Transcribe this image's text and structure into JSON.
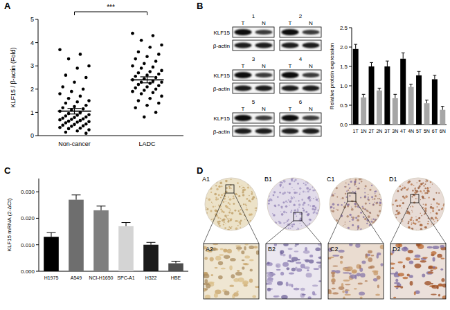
{
  "panel_labels": [
    "A",
    "B",
    "C",
    "D"
  ],
  "chart_data": [
    {
      "type": "dot",
      "categories": [
        "Non-cancer",
        "LADC"
      ],
      "values": [
        [
          3.7,
          3.5,
          3.3,
          3.0,
          2.9,
          2.6,
          2.5,
          2.3,
          2.1,
          2.0,
          1.9,
          1.8,
          1.7,
          1.6,
          1.5,
          1.45,
          1.4,
          1.3,
          1.25,
          1.2,
          1.15,
          1.1,
          1.05,
          1.0,
          0.95,
          0.9,
          0.88,
          0.85,
          0.8,
          0.78,
          0.75,
          0.72,
          0.7,
          0.68,
          0.65,
          0.62,
          0.6,
          0.58,
          0.55,
          0.5,
          0.48,
          0.45,
          0.42,
          0.4,
          0.35,
          0.32,
          0.3,
          0.25,
          0.2,
          0.15,
          0.1
        ],
        [
          4.4,
          4.3,
          4.1,
          3.9,
          3.8,
          3.6,
          3.5,
          3.4,
          3.3,
          3.2,
          3.1,
          3.0,
          2.95,
          2.9,
          2.8,
          2.75,
          2.7,
          2.65,
          2.6,
          2.55,
          2.5,
          2.45,
          2.4,
          2.35,
          2.3,
          2.3,
          2.25,
          2.2,
          2.15,
          2.1,
          2.05,
          2.0,
          1.95,
          1.9,
          1.85,
          1.8,
          1.7,
          1.6,
          1.5,
          1.4,
          1.3,
          1.2,
          1.0,
          0.8
        ]
      ],
      "mean": [
        1.05,
        2.4
      ],
      "error": [
        0.12,
        0.13
      ],
      "color": "#000000",
      "y_label": "KLF15 / β-actin (Fold)",
      "ylim": [
        0,
        5
      ],
      "yticks": [
        0,
        1,
        2,
        3,
        4,
        5
      ],
      "annotation": "***"
    },
    {
      "type": "bar",
      "categories": [
        "1T",
        "1N",
        "2T",
        "2N",
        "3T",
        "3N",
        "4T",
        "4N",
        "5T",
        "5N",
        "6T",
        "6N"
      ],
      "values": [
        1.95,
        0.7,
        1.5,
        0.88,
        1.5,
        0.68,
        1.7,
        0.97,
        1.27,
        0.55,
        1.17,
        0.38
      ],
      "error": [
        0.12,
        0.08,
        0.1,
        0.06,
        0.14,
        0.1,
        0.15,
        0.07,
        0.1,
        0.08,
        0.1,
        0.09
      ],
      "colors": [
        "#000000",
        "#a6a6a6",
        "#000000",
        "#a6a6a6",
        "#000000",
        "#a6a6a6",
        "#000000",
        "#a6a6a6",
        "#000000",
        "#a6a6a6",
        "#000000",
        "#a6a6a6"
      ],
      "y_label": "Relative protein expression",
      "ylim": [
        0,
        2.5
      ],
      "yticks": [
        {
          "value": 0,
          "label": "0.0"
        },
        {
          "value": 0.5,
          "label": "0.5"
        },
        {
          "value": 1,
          "label": "1.0"
        },
        {
          "value": 1.5,
          "label": "1.5"
        },
        {
          "value": 2,
          "label": "2.0"
        },
        {
          "value": 2.5,
          "label": "2.5"
        }
      ]
    },
    {
      "type": "bar",
      "categories": [
        "H1975",
        "A549",
        "NCI-H1650",
        "SPC-A1",
        "H322",
        "HBE"
      ],
      "values": [
        0.013,
        0.027,
        0.023,
        0.017,
        0.01,
        0.003
      ],
      "error": [
        0.0016,
        0.0018,
        0.0016,
        0.0014,
        0.0009,
        0.0008
      ],
      "colors": [
        "#000000",
        "#6e6e6e",
        "#7f7f7f",
        "#d4d4d4",
        "#1a1a1a",
        "#4d4d4d"
      ],
      "y_label": "KLF15 mRNA (2-ΔCt)",
      "ylim": [
        0,
        0.035
      ],
      "yticks": [
        {
          "value": 0,
          "label": "0.000"
        },
        {
          "value": 0.01,
          "label": "0.010"
        },
        {
          "value": 0.02,
          "label": "0.020"
        },
        {
          "value": 0.03,
          "label": "0.030"
        }
      ]
    }
  ],
  "blots": {
    "samples": [
      "1",
      "2",
      "3",
      "4",
      "5",
      "6"
    ],
    "lanes": [
      "T",
      "N"
    ],
    "proteins": [
      "KLF15",
      "β-actin"
    ]
  },
  "ihc": {
    "whole": [
      "A1",
      "B1",
      "C1",
      "D1"
    ],
    "zoom": [
      "A2",
      "B2",
      "C2",
      "D2"
    ]
  }
}
